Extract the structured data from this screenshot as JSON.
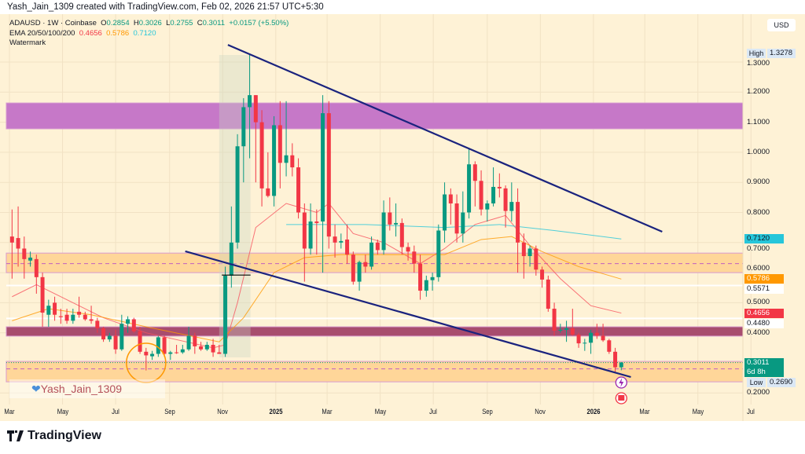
{
  "caption": "Yash_Jain_1309 created with TradingView.com, Feb 02, 2026 21:57 UTC+5:30",
  "legend": {
    "symbol": "ADAUSD · 1W · Coinbase",
    "o_label": "O",
    "o": "0.2854",
    "h_label": "H",
    "h": "0.3026",
    "l_label": "L",
    "l": "0.2755",
    "c_label": "C",
    "c": "0.3011",
    "change": "+0.0157 (+5.50%)",
    "ema_label": "EMA 20/50/100/200",
    "ema20": "0.4656",
    "ema50": "0.5786",
    "ema200": "0.7120",
    "watermark": "Watermark"
  },
  "currency_button": "USD",
  "watermark_text": "Yash_Jain_1309",
  "brand": "TradingView",
  "icons": {
    "watermark": "heart-icon",
    "event1": "lightning-icon",
    "event2": "us-flag-icon",
    "logo": "tradingview-logo-icon"
  },
  "price_labels": [
    {
      "tag": "High",
      "value": "1.3278",
      "bg": "#dbe8f5",
      "fg": "#131722"
    },
    {
      "value": "0.7120",
      "bg": "#26c6da",
      "fg": "#131722"
    },
    {
      "value": "0.5786",
      "bg": "#ff9800",
      "fg": "#ffffff"
    },
    {
      "value": "0.5571",
      "bg": "#ffffff",
      "fg": "#131722"
    },
    {
      "value": "0.4656",
      "bg": "#f23645",
      "fg": "#ffffff"
    },
    {
      "value": "0.4480",
      "bg": "#ffffff",
      "fg": "#131722"
    },
    {
      "value": "0.3011",
      "sub": "6d 8h",
      "bg": "#089981",
      "fg": "#ffffff"
    },
    {
      "tag": "Low",
      "value": "0.2690",
      "bg": "#dbe8f5",
      "fg": "#131722"
    }
  ],
  "chart_data": {
    "type": "candlestick",
    "symbol": "ADAUSD",
    "interval": "1W",
    "start_week": "2024-03-04",
    "ylim": [
      0.17,
      1.36
    ],
    "grid": true,
    "colors": {
      "up": "#089981",
      "down": "#f23645",
      "ema20": "#f7525f",
      "ema50": "#ff9800",
      "ema200": "#26c6da",
      "trendline": "#1a237e",
      "background": "#fef2d6"
    },
    "y_ticks": [
      "1.3000",
      "1.2000",
      "1.1000",
      "1.0000",
      "0.9000",
      "0.8000",
      "0.7000",
      "0.6000",
      "0.5000",
      "0.4000",
      "0.2000"
    ],
    "x_ticks": [
      {
        "label": "Mar",
        "date": "2024-03-01"
      },
      {
        "label": "May",
        "date": "2024-05-01"
      },
      {
        "label": "Jul",
        "date": "2024-07-01"
      },
      {
        "label": "Sep",
        "date": "2024-09-01"
      },
      {
        "label": "Nov",
        "date": "2024-11-01"
      },
      {
        "label": "2025",
        "date": "2025-01-01",
        "bold": true
      },
      {
        "label": "Mar",
        "date": "2025-03-01"
      },
      {
        "label": "May",
        "date": "2025-05-01"
      },
      {
        "label": "Jul",
        "date": "2025-07-01"
      },
      {
        "label": "Sep",
        "date": "2025-09-01"
      },
      {
        "label": "Nov",
        "date": "2025-11-01"
      },
      {
        "label": "2026",
        "date": "2026-01-01",
        "bold": true
      },
      {
        "label": "Mar",
        "date": "2026-03-01"
      },
      {
        "label": "May",
        "date": "2026-05-01"
      },
      {
        "label": "Jul",
        "date": "2026-07-01"
      }
    ],
    "ohlc": [
      [
        0.72,
        0.81,
        0.58,
        0.7
      ],
      [
        0.715,
        0.82,
        0.62,
        0.68
      ],
      [
        0.68,
        0.72,
        0.58,
        0.645
      ],
      [
        0.64,
        0.67,
        0.62,
        0.65
      ],
      [
        0.645,
        0.66,
        0.53,
        0.585
      ],
      [
        0.585,
        0.6,
        0.42,
        0.467
      ],
      [
        0.46,
        0.51,
        0.42,
        0.49
      ],
      [
        0.5,
        0.52,
        0.44,
        0.46
      ],
      [
        0.455,
        0.48,
        0.43,
        0.452
      ],
      [
        0.46,
        0.48,
        0.43,
        0.44
      ],
      [
        0.44,
        0.48,
        0.43,
        0.46
      ],
      [
        0.47,
        0.52,
        0.45,
        0.46
      ],
      [
        0.46,
        0.47,
        0.44,
        0.445
      ],
      [
        0.445,
        0.49,
        0.43,
        0.44
      ],
      [
        0.44,
        0.45,
        0.4,
        0.415
      ],
      [
        0.415,
        0.42,
        0.37,
        0.378
      ],
      [
        0.378,
        0.4,
        0.37,
        0.39
      ],
      [
        0.39,
        0.41,
        0.33,
        0.345
      ],
      [
        0.345,
        0.46,
        0.34,
        0.43
      ],
      [
        0.43,
        0.455,
        0.4,
        0.445
      ],
      [
        0.445,
        0.45,
        0.4,
        0.405
      ],
      [
        0.405,
        0.42,
        0.33,
        0.337
      ],
      [
        0.337,
        0.35,
        0.275,
        0.325
      ],
      [
        0.322,
        0.34,
        0.31,
        0.33
      ],
      [
        0.33,
        0.39,
        0.32,
        0.385
      ],
      [
        0.385,
        0.39,
        0.32,
        0.33
      ],
      [
        0.33,
        0.34,
        0.31,
        0.335
      ],
      [
        0.335,
        0.36,
        0.33,
        0.333
      ],
      [
        0.335,
        0.36,
        0.33,
        0.345
      ],
      [
        0.345,
        0.42,
        0.34,
        0.39
      ],
      [
        0.39,
        0.4,
        0.33,
        0.355
      ],
      [
        0.355,
        0.37,
        0.34,
        0.345
      ],
      [
        0.345,
        0.37,
        0.34,
        0.36
      ],
      [
        0.36,
        0.38,
        0.32,
        0.335
      ],
      [
        0.335,
        0.36,
        0.33,
        0.33
      ],
      [
        0.33,
        0.62,
        0.32,
        0.59
      ],
      [
        0.59,
        0.82,
        0.55,
        0.7
      ],
      [
        0.7,
        1.06,
        0.68,
        1.02
      ],
      [
        1.02,
        1.18,
        0.9,
        1.15
      ],
      [
        1.15,
        1.3278,
        0.98,
        1.19
      ],
      [
        1.19,
        1.19,
        0.9,
        1.1
      ],
      [
        1.1,
        1.14,
        0.82,
        0.88
      ],
      [
        0.88,
        1.0,
        0.85,
        0.855
      ],
      [
        0.855,
        1.12,
        0.82,
        1.09
      ],
      [
        1.09,
        1.17,
        0.88,
        0.965
      ],
      [
        0.965,
        1.17,
        0.92,
        0.99
      ],
      [
        0.99,
        1.03,
        0.92,
        0.95
      ],
      [
        0.95,
        0.98,
        0.78,
        0.8
      ],
      [
        0.8,
        0.83,
        0.57,
        0.68
      ],
      [
        0.68,
        0.83,
        0.66,
        0.77
      ],
      [
        0.77,
        0.81,
        0.66,
        0.765
      ],
      [
        0.77,
        1.19,
        0.6,
        1.13
      ],
      [
        1.13,
        1.17,
        0.68,
        0.72
      ],
      [
        0.72,
        0.76,
        0.65,
        0.7
      ],
      [
        0.7,
        0.73,
        0.68,
        0.705
      ],
      [
        0.71,
        0.76,
        0.63,
        0.66
      ],
      [
        0.66,
        0.67,
        0.56,
        0.57
      ],
      [
        0.57,
        0.64,
        0.54,
        0.635
      ],
      [
        0.635,
        0.66,
        0.6,
        0.62
      ],
      [
        0.62,
        0.72,
        0.61,
        0.7
      ],
      [
        0.7,
        0.71,
        0.66,
        0.675
      ],
      [
        0.675,
        0.84,
        0.66,
        0.8
      ],
      [
        0.8,
        0.85,
        0.74,
        0.76
      ],
      [
        0.76,
        0.83,
        0.72,
        0.765
      ],
      [
        0.765,
        0.78,
        0.66,
        0.685
      ],
      [
        0.685,
        0.7,
        0.64,
        0.67
      ],
      [
        0.67,
        0.69,
        0.6,
        0.63
      ],
      [
        0.63,
        0.66,
        0.51,
        0.54
      ],
      [
        0.54,
        0.59,
        0.52,
        0.575
      ],
      [
        0.575,
        0.6,
        0.54,
        0.585
      ],
      [
        0.585,
        0.76,
        0.57,
        0.74
      ],
      [
        0.74,
        0.9,
        0.7,
        0.86
      ],
      [
        0.86,
        0.88,
        0.76,
        0.83
      ],
      [
        0.83,
        0.86,
        0.7,
        0.73
      ],
      [
        0.73,
        0.87,
        0.7,
        0.8
      ],
      [
        0.8,
        1.015,
        0.78,
        0.96
      ],
      [
        0.96,
        0.97,
        0.82,
        0.905
      ],
      [
        0.905,
        0.94,
        0.79,
        0.81
      ],
      [
        0.81,
        0.84,
        0.77,
        0.83
      ],
      [
        0.83,
        0.95,
        0.82,
        0.885
      ],
      [
        0.885,
        0.93,
        0.85,
        0.88
      ],
      [
        0.88,
        0.89,
        0.75,
        0.805
      ],
      [
        0.805,
        0.9,
        0.77,
        0.835
      ],
      [
        0.835,
        0.88,
        0.6,
        0.7
      ],
      [
        0.7,
        0.73,
        0.58,
        0.655
      ],
      [
        0.655,
        0.69,
        0.62,
        0.68
      ],
      [
        0.68,
        0.69,
        0.59,
        0.61
      ],
      [
        0.61,
        0.62,
        0.55,
        0.577
      ],
      [
        0.577,
        0.59,
        0.47,
        0.48
      ],
      [
        0.48,
        0.5,
        0.39,
        0.407
      ],
      [
        0.407,
        0.43,
        0.4,
        0.41
      ],
      [
        0.41,
        0.44,
        0.37,
        0.415
      ],
      [
        0.415,
        0.48,
        0.39,
        0.394
      ],
      [
        0.394,
        0.4,
        0.35,
        0.365
      ],
      [
        0.365,
        0.38,
        0.34,
        0.367
      ],
      [
        0.367,
        0.41,
        0.33,
        0.4
      ],
      [
        0.4,
        0.43,
        0.38,
        0.39
      ],
      [
        0.39,
        0.43,
        0.37,
        0.375
      ],
      [
        0.375,
        0.38,
        0.33,
        0.337
      ],
      [
        0.337,
        0.35,
        0.269,
        0.2854
      ],
      [
        0.2854,
        0.3026,
        0.2755,
        0.3011
      ]
    ],
    "ema20": [
      [
        "2024-03-04",
        0.52
      ],
      [
        "2024-04-01",
        0.56
      ],
      [
        "2024-05-13",
        0.5
      ],
      [
        "2024-06-17",
        0.45
      ],
      [
        "2024-08-05",
        0.4
      ],
      [
        "2024-10-21",
        0.35
      ],
      [
        "2024-11-04",
        0.36
      ],
      [
        "2024-11-18",
        0.5
      ],
      [
        "2024-12-09",
        0.75
      ],
      [
        "2025-01-13",
        0.83
      ],
      [
        "2025-02-17",
        0.8
      ],
      [
        "2025-03-03",
        0.83
      ],
      [
        "2025-03-31",
        0.73
      ],
      [
        "2025-05-05",
        0.7
      ],
      [
        "2025-06-16",
        0.63
      ],
      [
        "2025-07-14",
        0.68
      ],
      [
        "2025-08-18",
        0.76
      ],
      [
        "2025-09-22",
        0.79
      ],
      [
        "2025-10-20",
        0.69
      ],
      [
        "2025-11-24",
        0.58
      ],
      [
        "2025-12-29",
        0.49
      ],
      [
        "2026-02-02",
        0.4656
      ]
    ],
    "ema50": [
      [
        "2024-03-04",
        0.44
      ],
      [
        "2024-04-15",
        0.48
      ],
      [
        "2024-06-03",
        0.46
      ],
      [
        "2024-08-05",
        0.42
      ],
      [
        "2024-10-28",
        0.37
      ],
      [
        "2024-11-25",
        0.45
      ],
      [
        "2024-12-30",
        0.6
      ],
      [
        "2025-02-03",
        0.65
      ],
      [
        "2025-03-17",
        0.66
      ],
      [
        "2025-06-02",
        0.66
      ],
      [
        "2025-07-14",
        0.66
      ],
      [
        "2025-08-25",
        0.71
      ],
      [
        "2025-09-29",
        0.72
      ],
      [
        "2025-11-03",
        0.67
      ],
      [
        "2025-12-15",
        0.62
      ],
      [
        "2026-02-02",
        0.5786
      ]
    ],
    "ema200": [
      [
        "2025-01-13",
        0.76
      ],
      [
        "2025-04-14",
        0.76
      ],
      [
        "2025-07-14",
        0.75
      ],
      [
        "2025-09-15",
        0.76
      ],
      [
        "2025-11-17",
        0.74
      ],
      [
        "2026-02-02",
        0.712
      ]
    ],
    "zones": [
      {
        "from": 1.078,
        "to": 1.164,
        "color": "#c678c8"
      },
      {
        "from": 0.6,
        "to": 0.665,
        "color": "#ffd699",
        "mid": 0.63
      },
      {
        "from": 0.389,
        "to": 0.42,
        "color": "#a84d6e"
      },
      {
        "from": 0.237,
        "to": 0.305,
        "color": "#ffd699",
        "mid": 0.28
      }
    ],
    "hlines": [
      {
        "price": 0.5571,
        "color": "#ffffff"
      },
      {
        "price": 0.448,
        "color": "#ffffff"
      },
      {
        "price": 0.3011,
        "color": "#089981",
        "dotted": true
      }
    ],
    "trendlines": [
      {
        "from": [
          "2024-11-07",
          1.357
        ],
        "to": [
          "2026-03-21",
          0.736
        ]
      },
      {
        "from": [
          "2024-09-19",
          0.671
        ],
        "to": [
          "2026-02-13",
          0.253
        ]
      }
    ],
    "highlight_range": [
      "2024-10-28",
      "2024-12-03"
    ],
    "marker_line": {
      "from": "2024-10-31",
      "to": "2024-12-03",
      "price": 0.592
    },
    "circle": {
      "date": "2024-08-05",
      "price": 0.3
    }
  }
}
